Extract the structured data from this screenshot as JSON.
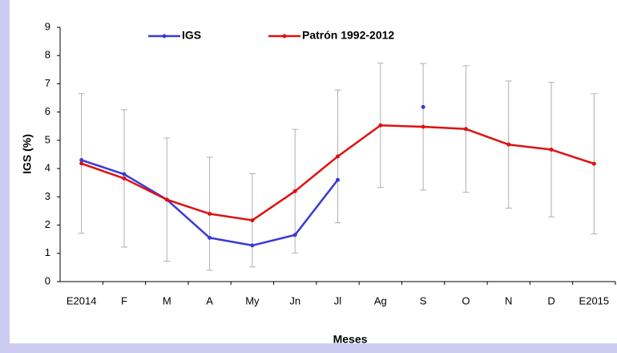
{
  "chart_data": {
    "type": "line",
    "x_label": "Meses",
    "y_label": "IGS (%)",
    "categories": [
      "E2014",
      "F",
      "M",
      "A",
      "My",
      "Jn",
      "Jl",
      "Ag",
      "S",
      "O",
      "N",
      "D",
      "E2015"
    ],
    "series": [
      {
        "name": "IGS",
        "color": "#3a3ad6",
        "values": [
          4.3,
          3.8,
          2.9,
          1.55,
          1.28,
          1.65,
          3.6,
          null,
          6.18,
          null,
          null,
          null,
          null
        ]
      },
      {
        "name": "Patrón 1992-2012",
        "color": "#e01010",
        "values": [
          4.18,
          3.65,
          2.9,
          2.4,
          2.17,
          3.2,
          4.43,
          5.53,
          5.48,
          5.4,
          4.85,
          4.67,
          4.17
        ],
        "errors": [
          2.47,
          2.43,
          2.18,
          2.0,
          1.65,
          2.19,
          2.35,
          2.2,
          2.24,
          2.24,
          2.25,
          2.38,
          2.48
        ],
        "error_color": "#b0b0b0"
      }
    ],
    "ylim": [
      0,
      9
    ],
    "yticks": [
      0,
      1,
      2,
      3,
      4,
      5,
      6,
      7,
      8,
      9
    ],
    "grid": false,
    "legend": "top"
  }
}
